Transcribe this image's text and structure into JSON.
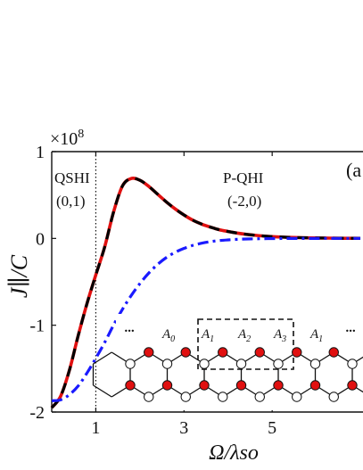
{
  "chart_data": {
    "type": "line",
    "ylabel": "J∥/C",
    "xlabel": "Ω/λso",
    "y_multiplier": "×10",
    "y_multiplier_exp": "8",
    "xlim": [
      0,
      7
    ],
    "ylim": [
      -2,
      1
    ],
    "xticks": [
      {
        "v": 1,
        "label": "1"
      },
      {
        "v": 3,
        "label": "3"
      },
      {
        "v": 5,
        "label": "5"
      }
    ],
    "yticks": [
      {
        "v": 1,
        "label": "1"
      },
      {
        "v": 0,
        "label": "0"
      },
      {
        "v": -1,
        "label": "-1"
      },
      {
        "v": -2,
        "label": "-2"
      }
    ],
    "vline_x": 1,
    "panel_label": "(a",
    "annotations": [
      {
        "line1": "QSHI",
        "line2": "(0,1)",
        "x": 0.05,
        "y": 0.87
      },
      {
        "line1": "P-QHI",
        "line2": "(-2,0)",
        "x": 3.4,
        "y": 0.87
      }
    ],
    "series": [
      {
        "color": "#e01010",
        "style": "solid",
        "x": [
          0.0,
          0.2,
          0.4,
          0.6,
          0.8,
          1.0,
          1.2,
          1.4,
          1.6,
          1.8,
          2.0,
          2.2,
          2.4,
          2.6,
          2.8,
          3.0,
          3.2,
          3.4,
          3.6,
          3.8,
          4.0,
          4.2,
          4.4,
          4.6,
          4.8,
          5.0,
          5.2,
          5.4,
          5.6,
          5.8,
          6.0,
          6.2,
          6.4,
          6.6,
          6.8,
          7.0
        ],
        "y": [
          -1.95,
          -1.82,
          -1.52,
          -1.12,
          -0.75,
          -0.42,
          -0.1,
          0.3,
          0.6,
          0.69,
          0.67,
          0.6,
          0.51,
          0.42,
          0.34,
          0.27,
          0.21,
          0.165,
          0.13,
          0.1,
          0.08,
          0.062,
          0.048,
          0.037,
          0.028,
          0.021,
          0.016,
          0.012,
          0.009,
          0.007,
          0.005,
          0.004,
          0.003,
          0.002,
          0.0015,
          0.001
        ]
      },
      {
        "color": "#000000",
        "style": "dashed",
        "x": [
          0.0,
          0.2,
          0.4,
          0.6,
          0.8,
          1.0,
          1.2,
          1.4,
          1.6,
          1.8,
          2.0,
          2.2,
          2.4,
          2.6,
          2.8,
          3.0,
          3.2,
          3.4,
          3.6,
          3.8,
          4.0,
          4.2,
          4.4,
          4.6,
          4.8,
          5.0,
          5.2,
          5.4,
          5.6,
          5.8,
          6.0,
          6.2,
          6.4,
          6.6,
          6.8,
          7.0
        ],
        "y": [
          -1.95,
          -1.82,
          -1.52,
          -1.12,
          -0.75,
          -0.42,
          -0.1,
          0.3,
          0.6,
          0.69,
          0.67,
          0.6,
          0.51,
          0.42,
          0.34,
          0.27,
          0.21,
          0.165,
          0.13,
          0.1,
          0.08,
          0.062,
          0.048,
          0.037,
          0.028,
          0.021,
          0.016,
          0.012,
          0.009,
          0.007,
          0.005,
          0.004,
          0.003,
          0.002,
          0.0015,
          0.001
        ]
      },
      {
        "color": "#1a1aff",
        "style": "dashdot",
        "x": [
          0.0,
          0.2,
          0.4,
          0.6,
          0.8,
          1.0,
          1.2,
          1.4,
          1.6,
          1.8,
          2.0,
          2.2,
          2.4,
          2.6,
          2.8,
          3.0,
          3.2,
          3.4,
          3.6,
          3.8,
          4.0,
          4.2,
          4.4,
          4.6,
          4.8,
          5.0,
          5.2,
          5.4,
          5.6,
          5.8,
          6.0,
          6.2,
          6.4,
          6.6,
          6.8,
          7.0
        ],
        "y": [
          -1.87,
          -1.86,
          -1.8,
          -1.7,
          -1.55,
          -1.38,
          -1.2,
          -1.0,
          -0.82,
          -0.66,
          -0.52,
          -0.4,
          -0.3,
          -0.22,
          -0.16,
          -0.115,
          -0.08,
          -0.055,
          -0.037,
          -0.025,
          -0.017,
          -0.011,
          -0.007,
          -0.0045,
          -0.003,
          -0.002,
          -0.0013,
          -0.0008,
          -0.0005,
          -0.0003,
          -0.0002,
          0.0,
          0.0,
          0.0,
          0.0,
          0.0
        ]
      }
    ]
  },
  "inset": {
    "site_labels": [
      {
        "base": "A",
        "sub": "0"
      },
      {
        "base": "A",
        "sub": "1"
      },
      {
        "base": "A",
        "sub": "2"
      },
      {
        "base": "A",
        "sub": "3"
      },
      {
        "base": "A",
        "sub": "1"
      }
    ],
    "ellipsis": "...",
    "atom_colors": {
      "red": "#e01010",
      "white": "#ffffff"
    }
  }
}
